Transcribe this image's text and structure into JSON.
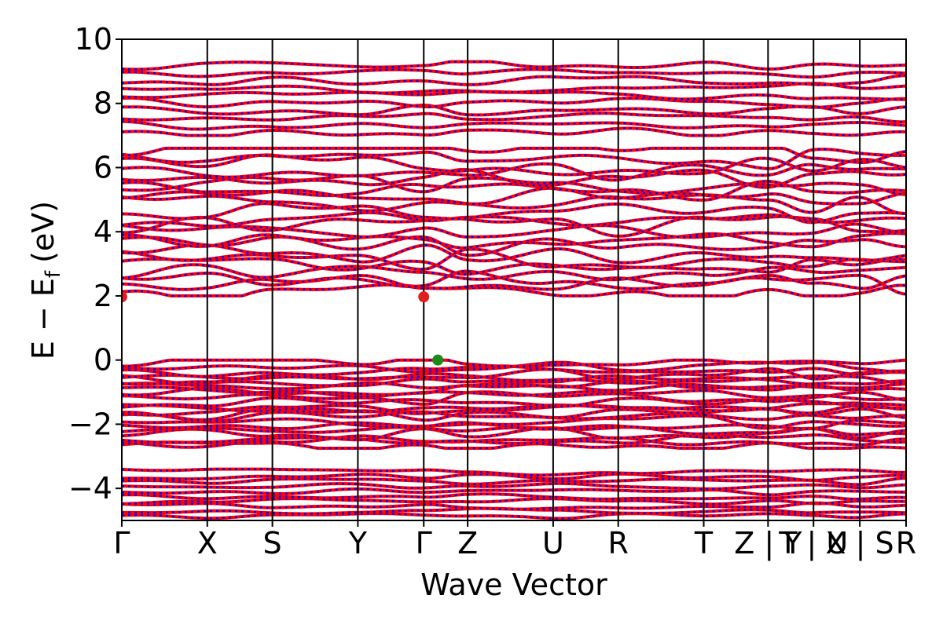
{
  "chart_data": {
    "type": "line",
    "title": "",
    "xlabel": "Wave Vector",
    "ylabel_main": "E − E",
    "ylabel_sub": "f",
    "ylabel_unit": "(eV)",
    "ylim": [
      -5,
      10
    ],
    "yticks": [
      {
        "value": 10,
        "label": "10"
      },
      {
        "value": 8,
        "label": "8"
      },
      {
        "value": 6,
        "label": "6"
      },
      {
        "value": 4,
        "label": "4"
      },
      {
        "value": 2,
        "label": "2"
      },
      {
        "value": 0,
        "label": "0"
      },
      {
        "value": -2,
        "label": "−2"
      },
      {
        "value": -4,
        "label": "−4"
      }
    ],
    "kpath_fractions": [
      0,
      0.109,
      0.192,
      0.301,
      0.385,
      0.441,
      0.55,
      0.633,
      0.742,
      0.824,
      0.882,
      0.941,
      1.0
    ],
    "kpath_labels": [
      {
        "label": "Γ",
        "pos": 0
      },
      {
        "label": "X",
        "pos": 0.109
      },
      {
        "label": "S",
        "pos": 0.192
      },
      {
        "label": "Y",
        "pos": 0.301
      },
      {
        "label": "Γ",
        "pos": 0.385
      },
      {
        "label": "Z",
        "pos": 0.441
      },
      {
        "label": "U",
        "pos": 0.55
      },
      {
        "label": "R",
        "pos": 0.633
      },
      {
        "label": "T",
        "pos": 0.742
      },
      {
        "label": "Z | Y",
        "pos": 0.824
      },
      {
        "label": "T | U",
        "pos": 0.882
      },
      {
        "label": "X | S",
        "pos": 0.941
      },
      {
        "label": "R",
        "pos": 1.0
      }
    ],
    "band_groups": [
      {
        "e_min": -4.95,
        "e_max": -3.4,
        "count": 10
      },
      {
        "e_min": -2.75,
        "e_max": 0.0,
        "count": 22
      },
      {
        "e_min": 2.0,
        "e_max": 6.6,
        "count": 22
      },
      {
        "e_min": 7.0,
        "e_max": 9.3,
        "count": 10
      }
    ],
    "series": [
      {
        "color": "#ff0000",
        "style": "solid"
      },
      {
        "color": "#0000ff",
        "style": "dotted"
      }
    ],
    "markers": [
      {
        "k": 0.0,
        "energy": 1.97,
        "color": "#e02020",
        "kind": "cbm"
      },
      {
        "k": 0.385,
        "energy": 1.97,
        "color": "#e02020",
        "kind": "cbm"
      },
      {
        "k": 0.403,
        "energy": 0.0,
        "color": "#1a8a1a",
        "kind": "vbm"
      }
    ],
    "grid": false,
    "legend": "none"
  }
}
